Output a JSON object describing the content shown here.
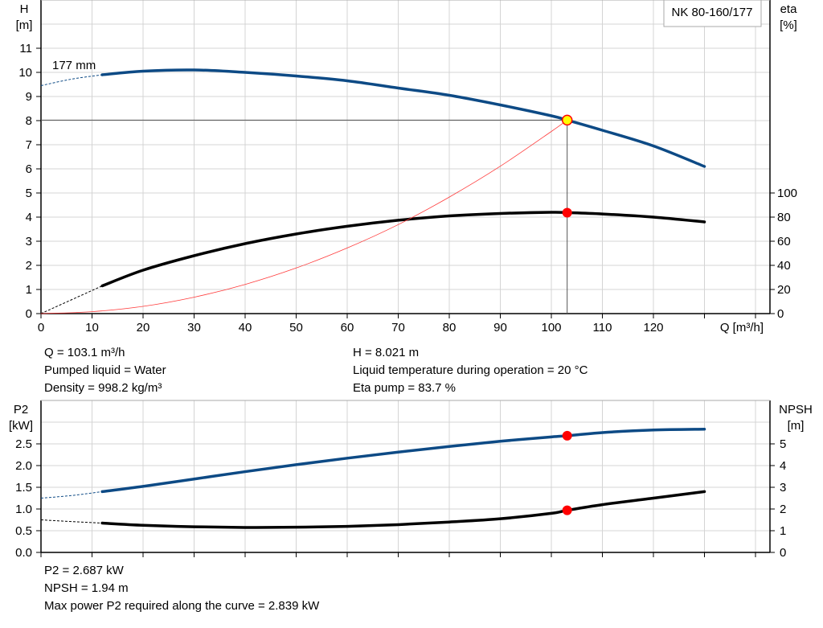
{
  "colors": {
    "head": "#0d4a85",
    "eta": "#000000",
    "system": "#ff3b3b",
    "duty_point": "#ff0000",
    "duty_fill_top": "#ffff00",
    "grid": "#d4d4d4"
  },
  "chart_data": [
    {
      "type": "line",
      "title": "NK 80-160/177",
      "xlabel": "Q [m³/h]",
      "ylabel": "H\n[m]",
      "y2label": "eta\n[%]",
      "xlim": [
        0,
        140
      ],
      "ylim": [
        0,
        13
      ],
      "y2lim": [
        0,
        100
      ],
      "xticks": [
        0,
        10,
        20,
        30,
        40,
        50,
        60,
        70,
        80,
        90,
        100,
        110,
        120
      ],
      "yticks": [
        0,
        1,
        2,
        3,
        4,
        5,
        6,
        7,
        8,
        9,
        10,
        11
      ],
      "y2ticks": [
        0,
        20,
        40,
        60,
        80,
        100
      ],
      "grid": true,
      "annotation": "177 mm",
      "series": [
        {
          "key": "H",
          "axis": "left",
          "x": [
            12,
            20,
            30,
            40,
            50,
            60,
            70,
            80,
            90,
            100,
            103.1,
            110,
            120,
            130
          ],
          "y": [
            9.9,
            10.05,
            10.1,
            10.0,
            9.85,
            9.65,
            9.35,
            9.05,
            8.65,
            8.2,
            8.021,
            7.6,
            6.95,
            6.1
          ],
          "extrapolated": {
            "x": [
              0,
              6,
              12
            ],
            "y": [
              9.45,
              9.72,
              9.9
            ]
          }
        },
        {
          "key": "eta",
          "axis": "right",
          "x": [
            12,
            20,
            30,
            40,
            50,
            60,
            70,
            80,
            90,
            100,
            103.1,
            110,
            120,
            130
          ],
          "y": [
            23,
            36,
            48,
            58,
            66,
            72.4,
            77.4,
            81,
            83,
            84,
            83.7,
            82.6,
            80,
            76
          ],
          "extrapolated": {
            "x": [
              0,
              12
            ],
            "y": [
              0,
              23
            ]
          }
        },
        {
          "key": "system",
          "axis": "left",
          "x": [
            0,
            10,
            20,
            30,
            40,
            50,
            60,
            70,
            80,
            90,
            100,
            103.1
          ],
          "y": [
            0,
            0.08,
            0.3,
            0.68,
            1.21,
            1.89,
            2.72,
            3.69,
            4.83,
            6.11,
            7.55,
            8.021
          ]
        }
      ],
      "duty_point": {
        "Q": 103.1,
        "H": 8.021,
        "eta": 83.7
      }
    },
    {
      "type": "line",
      "ylabel": "P2\n[kW]",
      "y2label": "NPSH\n[m]",
      "xlim": [
        0,
        140
      ],
      "ylim": [
        0,
        3.3
      ],
      "y2lim": [
        0,
        6.6
      ],
      "yticks": [
        "0.0",
        "0.5",
        "1.0",
        "1.5",
        "2.0",
        "2.5"
      ],
      "y2ticks": [
        0,
        1,
        2,
        3,
        4,
        5
      ],
      "grid": true,
      "series": [
        {
          "key": "P2",
          "axis": "left",
          "x": [
            12,
            20,
            30,
            40,
            50,
            60,
            70,
            80,
            90,
            100,
            103.1,
            110,
            120,
            130
          ],
          "y": [
            1.4,
            1.52,
            1.69,
            1.86,
            2.02,
            2.17,
            2.31,
            2.44,
            2.56,
            2.66,
            2.687,
            2.76,
            2.82,
            2.839
          ],
          "extrapolated": {
            "x": [
              0,
              6,
              12
            ],
            "y": [
              1.25,
              1.31,
              1.4
            ]
          }
        },
        {
          "key": "NPSH",
          "axis": "right",
          "x": [
            12,
            20,
            30,
            40,
            50,
            60,
            70,
            80,
            90,
            100,
            103.1,
            110,
            120,
            130
          ],
          "y": [
            1.35,
            1.25,
            1.18,
            1.15,
            1.16,
            1.2,
            1.28,
            1.4,
            1.55,
            1.8,
            1.94,
            2.2,
            2.5,
            2.8
          ],
          "extrapolated": {
            "x": [
              0,
              6,
              12
            ],
            "y": [
              1.5,
              1.42,
              1.35
            ]
          }
        }
      ],
      "duty_point": {
        "Q": 103.1,
        "P2": 2.687,
        "NPSH": 1.94
      }
    }
  ],
  "info_top": {
    "q": "Q = 103.1 m³/h",
    "liquid": "Pumped liquid = Water",
    "density": "Density = 998.2 kg/m³",
    "h": "H = 8.021 m",
    "temp": "Liquid temperature during operation = 20 °C",
    "eta": "Eta pump = 83.7 %"
  },
  "info_bottom": {
    "p2": "P2 = 2.687 kW",
    "npsh": "NPSH = 1.94 m",
    "max_power": "Max power P2 required along the curve = 2.839 kW"
  }
}
